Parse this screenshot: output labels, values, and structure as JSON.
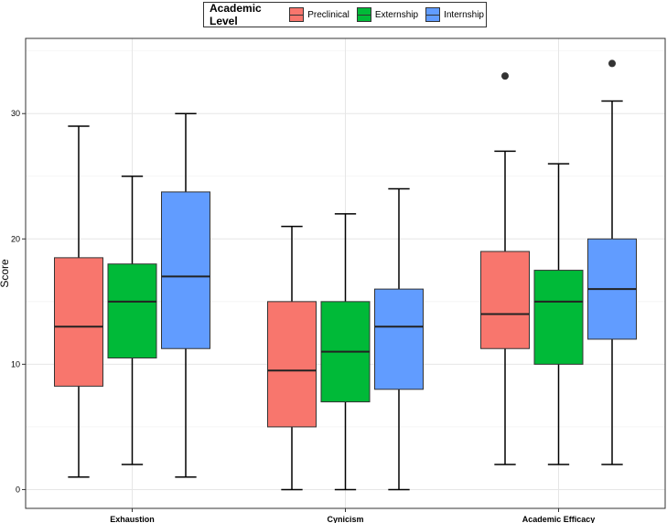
{
  "chart_data": {
    "type": "boxplot",
    "title": "",
    "xlabel": "",
    "ylabel": "Score",
    "ylim": [
      -1.5,
      36
    ],
    "yticks": [
      0,
      10,
      20,
      30
    ],
    "categories": [
      "Exhaustion",
      "Cynicism",
      "Academic Efficacy"
    ],
    "legend": {
      "title": "Academic Level",
      "position": "top",
      "entries": [
        "Preclinical",
        "Externship",
        "Internship"
      ]
    },
    "colors": {
      "Preclinical": "#F8766D",
      "Externship": "#00BA38",
      "Internship": "#619CFF"
    },
    "series": [
      {
        "name": "Preclinical",
        "boxes": [
          {
            "category": "Exhaustion",
            "min": 1,
            "q1": 8.25,
            "median": 13,
            "q3": 18.5,
            "max": 29,
            "outliers": []
          },
          {
            "category": "Cynicism",
            "min": 0,
            "q1": 5,
            "median": 9.5,
            "q3": 15,
            "max": 21,
            "outliers": []
          },
          {
            "category": "Academic Efficacy",
            "min": 2,
            "q1": 11.25,
            "median": 14,
            "q3": 19,
            "max": 27,
            "outliers": [
              33
            ]
          }
        ]
      },
      {
        "name": "Externship",
        "boxes": [
          {
            "category": "Exhaustion",
            "min": 2,
            "q1": 10.5,
            "median": 15,
            "q3": 18,
            "max": 25,
            "outliers": []
          },
          {
            "category": "Cynicism",
            "min": 0,
            "q1": 7,
            "median": 11,
            "q3": 15,
            "max": 22,
            "outliers": []
          },
          {
            "category": "Academic Efficacy",
            "min": 2,
            "q1": 10,
            "median": 15,
            "q3": 17.5,
            "max": 26,
            "outliers": []
          }
        ]
      },
      {
        "name": "Internship",
        "boxes": [
          {
            "category": "Exhaustion",
            "min": 1,
            "q1": 11.25,
            "median": 17,
            "q3": 23.75,
            "max": 30,
            "outliers": []
          },
          {
            "category": "Cynicism",
            "min": 0,
            "q1": 8,
            "median": 13,
            "q3": 16,
            "max": 24,
            "outliers": []
          },
          {
            "category": "Academic Efficacy",
            "min": 2,
            "q1": 12,
            "median": 16,
            "q3": 20,
            "max": 31,
            "outliers": [
              34
            ]
          }
        ]
      }
    ]
  }
}
